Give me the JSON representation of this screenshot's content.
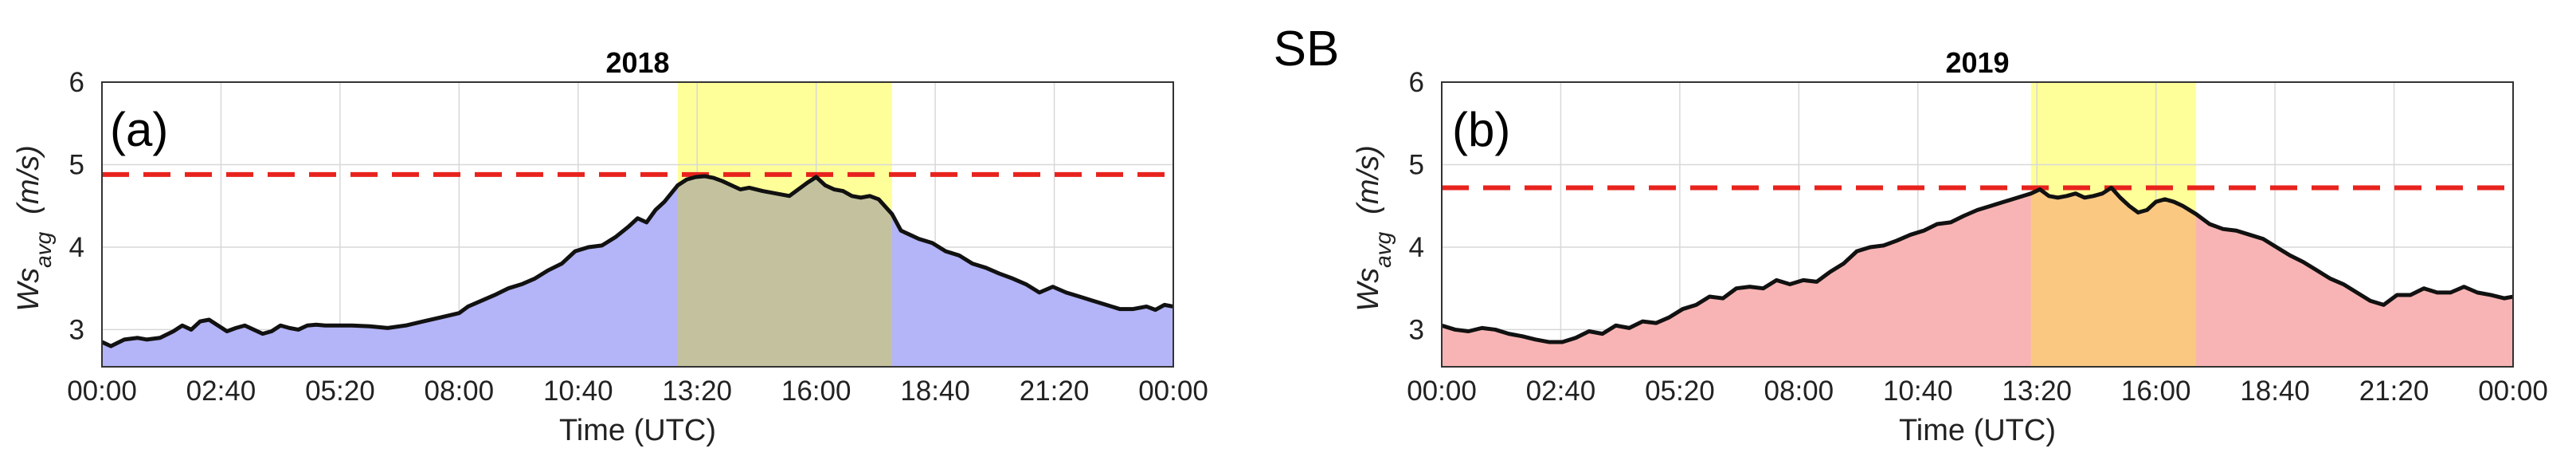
{
  "figure": {
    "title": "SB"
  },
  "chart_data": [
    {
      "type": "area",
      "panel_label": "(a)",
      "title": "2018",
      "xlabel": "Time (UTC)",
      "ylabel_main": "Ws",
      "ylabel_sub": "avg",
      "ylabel_unit": "(m/s)",
      "xlim": [
        0,
        24
      ],
      "ylim": [
        2.55,
        6
      ],
      "yticks": [
        3,
        4,
        5,
        6
      ],
      "xtick_values": [
        0,
        2.6667,
        5.3333,
        8,
        10.6667,
        13.3333,
        16,
        18.6667,
        21.3333,
        24
      ],
      "xtick_labels": [
        "00:00",
        "02:40",
        "05:20",
        "08:00",
        "10:40",
        "13:20",
        "16:00",
        "18:40",
        "21:20",
        "00:00"
      ],
      "threshold": 4.88,
      "highlight_window": [
        12.9,
        17.7
      ],
      "fill_color": "#b4b4f8",
      "highlight_color": "#ffff99",
      "overlap_color": "#c4c29e",
      "threshold_color": "#e8231e",
      "series": [
        {
          "name": "Ws_avg",
          "x": [
            0,
            0.2,
            0.5,
            0.8,
            1,
            1.3,
            1.6,
            1.8,
            2,
            2.2,
            2.4,
            2.6,
            2.8,
            3,
            3.2,
            3.4,
            3.6,
            3.8,
            4,
            4.2,
            4.4,
            4.6,
            4.8,
            5,
            5.3,
            5.6,
            6,
            6.4,
            6.8,
            7.2,
            7.6,
            8,
            8.2,
            8.5,
            8.8,
            9.1,
            9.4,
            9.7,
            10,
            10.3,
            10.6,
            10.9,
            11.2,
            11.5,
            11.8,
            12,
            12.2,
            12.4,
            12.6,
            12.9,
            13.1,
            13.3,
            13.5,
            13.7,
            13.9,
            14.1,
            14.3,
            14.5,
            14.8,
            15.1,
            15.4,
            15.6,
            15.8,
            16,
            16.2,
            16.4,
            16.6,
            16.8,
            17,
            17.2,
            17.4,
            17.7,
            17.9,
            18.1,
            18.3,
            18.6,
            18.9,
            19.2,
            19.5,
            19.8,
            20.1,
            20.4,
            20.7,
            21,
            21.3,
            21.6,
            21.9,
            22.2,
            22.5,
            22.8,
            23.1,
            23.4,
            23.6,
            23.8,
            24
          ],
          "y": [
            2.85,
            2.8,
            2.88,
            2.9,
            2.88,
            2.9,
            2.98,
            3.05,
            3.0,
            3.1,
            3.12,
            3.05,
            2.98,
            3.02,
            3.05,
            3.0,
            2.95,
            2.98,
            3.05,
            3.02,
            3.0,
            3.05,
            3.06,
            3.05,
            3.05,
            3.05,
            3.04,
            3.02,
            3.05,
            3.1,
            3.15,
            3.2,
            3.28,
            3.35,
            3.42,
            3.5,
            3.55,
            3.62,
            3.72,
            3.8,
            3.95,
            4.0,
            4.02,
            4.12,
            4.25,
            4.35,
            4.3,
            4.45,
            4.55,
            4.75,
            4.82,
            4.85,
            4.86,
            4.84,
            4.8,
            4.75,
            4.7,
            4.72,
            4.68,
            4.65,
            4.62,
            4.7,
            4.78,
            4.85,
            4.75,
            4.7,
            4.68,
            4.62,
            4.6,
            4.62,
            4.58,
            4.4,
            4.2,
            4.15,
            4.1,
            4.05,
            3.95,
            3.9,
            3.8,
            3.75,
            3.68,
            3.62,
            3.55,
            3.45,
            3.52,
            3.45,
            3.4,
            3.35,
            3.3,
            3.25,
            3.25,
            3.28,
            3.24,
            3.3,
            3.28
          ]
        }
      ]
    },
    {
      "type": "area",
      "panel_label": "(b)",
      "title": "2019",
      "xlabel": "Time (UTC)",
      "ylabel_main": "Ws",
      "ylabel_sub": "avg",
      "ylabel_unit": "(m/s)",
      "xlim": [
        0,
        24
      ],
      "ylim": [
        2.55,
        6
      ],
      "yticks": [
        3,
        4,
        5,
        6
      ],
      "xtick_values": [
        0,
        2.6667,
        5.3333,
        8,
        10.6667,
        13.3333,
        16,
        18.6667,
        21.3333,
        24
      ],
      "xtick_labels": [
        "00:00",
        "02:40",
        "05:20",
        "08:00",
        "10:40",
        "13:20",
        "16:00",
        "18:40",
        "21:20",
        "00:00"
      ],
      "threshold": 4.72,
      "highlight_window": [
        13.2,
        16.9
      ],
      "fill_color": "#f8b4b4",
      "highlight_color": "#ffff99",
      "overlap_color": "#fbc882",
      "threshold_color": "#e8231e",
      "series": [
        {
          "name": "Ws_avg",
          "x": [
            0,
            0.3,
            0.6,
            0.9,
            1.2,
            1.5,
            1.8,
            2.1,
            2.4,
            2.7,
            3,
            3.3,
            3.6,
            3.9,
            4.2,
            4.5,
            4.8,
            5.1,
            5.4,
            5.7,
            6,
            6.3,
            6.6,
            6.9,
            7.2,
            7.5,
            7.8,
            8.1,
            8.4,
            8.7,
            9,
            9.3,
            9.6,
            9.9,
            10.2,
            10.5,
            10.8,
            11.1,
            11.4,
            11.7,
            12,
            12.3,
            12.6,
            12.9,
            13.2,
            13.4,
            13.6,
            13.8,
            14,
            14.2,
            14.4,
            14.6,
            14.8,
            15,
            15.2,
            15.4,
            15.6,
            15.8,
            16,
            16.2,
            16.4,
            16.6,
            16.9,
            17.2,
            17.5,
            17.8,
            18.1,
            18.4,
            18.7,
            19,
            19.3,
            19.6,
            19.9,
            20.2,
            20.5,
            20.8,
            21.1,
            21.4,
            21.7,
            22,
            22.3,
            22.6,
            22.9,
            23.2,
            23.5,
            23.8,
            24
          ],
          "y": [
            3.05,
            3.0,
            2.98,
            3.02,
            3.0,
            2.95,
            2.92,
            2.88,
            2.85,
            2.85,
            2.9,
            2.98,
            2.95,
            3.05,
            3.02,
            3.1,
            3.08,
            3.15,
            3.25,
            3.3,
            3.4,
            3.38,
            3.5,
            3.52,
            3.5,
            3.6,
            3.55,
            3.6,
            3.58,
            3.7,
            3.8,
            3.95,
            4.0,
            4.02,
            4.08,
            4.15,
            4.2,
            4.28,
            4.3,
            4.38,
            4.45,
            4.5,
            4.55,
            4.6,
            4.65,
            4.7,
            4.62,
            4.6,
            4.62,
            4.65,
            4.6,
            4.62,
            4.65,
            4.72,
            4.6,
            4.5,
            4.42,
            4.45,
            4.55,
            4.58,
            4.55,
            4.5,
            4.4,
            4.28,
            4.22,
            4.2,
            4.15,
            4.1,
            4.0,
            3.9,
            3.82,
            3.72,
            3.62,
            3.55,
            3.45,
            3.35,
            3.3,
            3.42,
            3.42,
            3.5,
            3.45,
            3.45,
            3.52,
            3.45,
            3.42,
            3.38,
            3.4
          ]
        }
      ]
    }
  ]
}
